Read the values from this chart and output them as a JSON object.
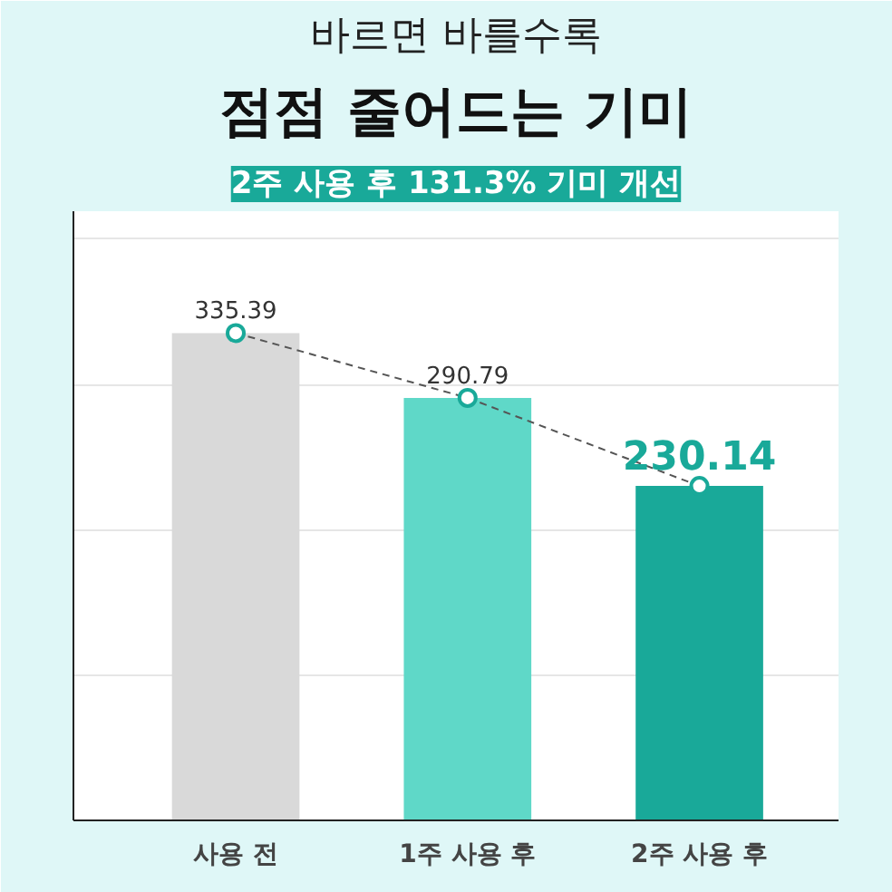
{
  "chart_data": {
    "type": "bar",
    "title": "바르면 바를수록",
    "subtitle": "점점 줄어드는 기미",
    "annotations": [
      "2주 사용 후 131.3% 기미 개선"
    ],
    "categories": [
      "사용 전",
      "1주 사용 후",
      "2주 사용 후"
    ],
    "series": [
      {
        "colors": [
          "#d9d9d9",
          "#5fd8c8",
          "#19a999"
        ],
        "values": [
          335.39,
          290.79,
          230.14
        ]
      },
      {
        "type": "line",
        "color": "#555555",
        "line_style": "dashed",
        "marker": "circle",
        "values": [
          335.39,
          290.79,
          230.14
        ],
        "value_labels": [
          "335.39",
          "290.79",
          "230.14"
        ]
      }
    ],
    "grid": "y",
    "tick_labels": "x"
  }
}
